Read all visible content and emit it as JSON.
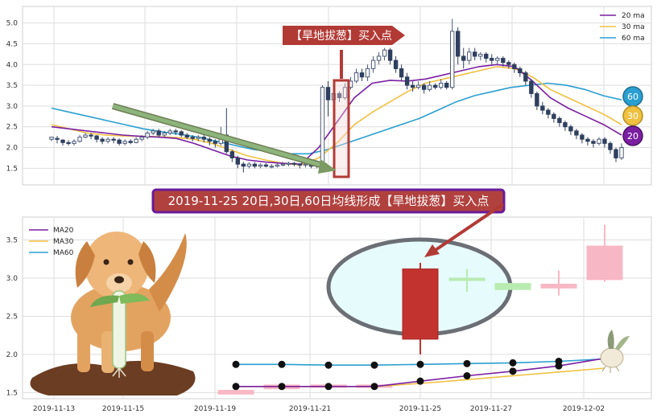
{
  "chart_data": [
    {
      "type": "candlestick",
      "panel": "top",
      "ylim": [
        1.1,
        5.4
      ],
      "yticks": [
        "1.5",
        "2.0",
        "2.5",
        "3.0",
        "3.5",
        "4.0",
        "4.5",
        "5.0"
      ],
      "grid": true,
      "legend_position": "top-right",
      "legend": [
        "20 ma",
        "30 ma",
        "60 ma"
      ],
      "series_colors": {
        "ma20": "#7b1fa2",
        "ma30": "#f0c040",
        "ma60": "#2a9fd0"
      },
      "candles": [
        [
          2.2,
          2.25,
          2.15,
          2.22
        ],
        [
          2.22,
          2.2,
          2.1,
          2.28
        ],
        [
          2.18,
          2.12,
          2.05,
          2.2
        ],
        [
          2.12,
          2.1,
          2.05,
          2.18
        ],
        [
          2.1,
          2.15,
          2.05,
          2.2
        ],
        [
          2.15,
          2.25,
          2.12,
          2.3
        ],
        [
          2.25,
          2.3,
          2.22,
          2.35
        ],
        [
          2.3,
          2.28,
          2.2,
          2.35
        ],
        [
          2.28,
          2.2,
          2.12,
          2.3
        ],
        [
          2.2,
          2.15,
          2.08,
          2.25
        ],
        [
          2.15,
          2.2,
          2.1,
          2.25
        ],
        [
          2.2,
          2.18,
          2.1,
          2.25
        ],
        [
          2.18,
          2.1,
          2.05,
          2.22
        ],
        [
          2.1,
          2.15,
          2.05,
          2.2
        ],
        [
          2.15,
          2.12,
          2.08,
          2.2
        ],
        [
          2.12,
          2.2,
          2.1,
          2.25
        ],
        [
          2.2,
          2.25,
          2.15,
          2.3
        ],
        [
          2.25,
          2.35,
          2.2,
          2.4
        ],
        [
          2.35,
          2.4,
          2.3,
          2.45
        ],
        [
          2.4,
          2.3,
          2.25,
          2.45
        ],
        [
          2.3,
          2.35,
          2.25,
          2.4
        ],
        [
          2.35,
          2.4,
          2.3,
          2.45
        ],
        [
          2.4,
          2.38,
          2.3,
          2.45
        ],
        [
          2.38,
          2.3,
          2.25,
          2.42
        ],
        [
          2.3,
          2.25,
          2.2,
          2.35
        ],
        [
          2.25,
          2.22,
          2.15,
          2.3
        ],
        [
          2.22,
          2.25,
          2.15,
          2.3
        ],
        [
          2.25,
          2.2,
          2.12,
          2.3
        ],
        [
          2.2,
          2.15,
          2.05,
          2.25
        ],
        [
          2.15,
          2.1,
          2.0,
          2.2
        ],
        [
          2.1,
          2.3,
          2.05,
          2.5
        ],
        [
          2.3,
          1.9,
          1.85,
          2.95
        ],
        [
          1.9,
          1.75,
          1.65,
          1.95
        ],
        [
          1.75,
          1.6,
          1.5,
          1.8
        ],
        [
          1.6,
          1.55,
          1.4,
          1.65
        ],
        [
          1.55,
          1.6,
          1.5,
          1.65
        ],
        [
          1.6,
          1.55,
          1.5,
          1.65
        ],
        [
          1.55,
          1.58,
          1.5,
          1.62
        ],
        [
          1.58,
          1.55,
          1.52,
          1.62
        ],
        [
          1.55,
          1.55,
          1.5,
          1.6
        ],
        [
          1.55,
          1.58,
          1.52,
          1.62
        ],
        [
          1.58,
          1.6,
          1.55,
          1.65
        ],
        [
          1.6,
          1.62,
          1.55,
          1.66
        ],
        [
          1.62,
          1.6,
          1.55,
          1.65
        ],
        [
          1.6,
          1.58,
          1.5,
          1.62
        ],
        [
          1.58,
          1.6,
          1.52,
          1.65
        ],
        [
          1.6,
          1.55,
          1.5,
          1.62
        ],
        [
          1.55,
          1.6,
          1.5,
          1.65
        ],
        [
          1.6,
          3.45,
          1.55,
          3.5
        ],
        [
          3.45,
          3.15,
          2.75,
          3.6
        ],
        [
          3.15,
          3.3,
          3.1,
          3.4
        ],
        [
          3.3,
          3.2,
          3.1,
          3.35
        ],
        [
          3.2,
          3.45,
          3.15,
          3.55
        ],
        [
          3.45,
          3.6,
          3.4,
          3.7
        ],
        [
          3.6,
          3.8,
          3.55,
          3.9
        ],
        [
          3.8,
          3.7,
          3.6,
          3.9
        ],
        [
          3.7,
          3.9,
          3.6,
          4.0
        ],
        [
          3.9,
          4.1,
          3.8,
          4.2
        ],
        [
          4.1,
          4.2,
          4.0,
          4.3
        ],
        [
          4.2,
          4.35,
          4.1,
          4.4
        ],
        [
          4.35,
          4.1,
          4.0,
          4.4
        ],
        [
          4.1,
          3.9,
          3.8,
          4.2
        ],
        [
          3.9,
          3.7,
          3.6,
          4.0
        ],
        [
          3.7,
          3.5,
          3.4,
          3.8
        ],
        [
          3.5,
          3.45,
          3.35,
          3.6
        ],
        [
          3.45,
          3.5,
          3.4,
          3.6
        ],
        [
          3.5,
          3.4,
          3.3,
          3.55
        ],
        [
          3.4,
          3.5,
          3.35,
          3.6
        ],
        [
          3.5,
          3.45,
          3.4,
          3.55
        ],
        [
          3.45,
          3.55,
          3.4,
          3.65
        ],
        [
          3.55,
          3.45,
          3.4,
          3.6
        ],
        [
          3.45,
          4.8,
          3.4,
          5.1
        ],
        [
          4.8,
          4.2,
          4.0,
          4.9
        ],
        [
          4.2,
          4.1,
          3.9,
          4.4
        ],
        [
          4.1,
          4.3,
          4.0,
          4.4
        ],
        [
          4.3,
          4.2,
          4.1,
          4.4
        ],
        [
          4.2,
          4.25,
          4.1,
          4.3
        ],
        [
          4.25,
          4.15,
          4.05,
          4.3
        ],
        [
          4.15,
          4.1,
          4.0,
          4.25
        ],
        [
          4.1,
          4.15,
          4.0,
          4.2
        ],
        [
          4.15,
          4.05,
          3.95,
          4.2
        ],
        [
          4.05,
          4.0,
          3.9,
          4.1
        ],
        [
          4.0,
          3.9,
          3.8,
          4.05
        ],
        [
          3.9,
          3.8,
          3.7,
          3.95
        ],
        [
          3.8,
          3.6,
          3.5,
          3.85
        ],
        [
          3.6,
          3.3,
          3.2,
          3.65
        ],
        [
          3.3,
          3.0,
          2.9,
          3.35
        ],
        [
          3.0,
          2.9,
          2.8,
          3.1
        ],
        [
          2.9,
          2.8,
          2.7,
          2.95
        ],
        [
          2.8,
          2.7,
          2.6,
          2.85
        ],
        [
          2.7,
          2.6,
          2.5,
          2.75
        ],
        [
          2.6,
          2.5,
          2.4,
          2.65
        ],
        [
          2.5,
          2.4,
          2.3,
          2.55
        ],
        [
          2.4,
          2.3,
          2.2,
          2.45
        ],
        [
          2.3,
          2.2,
          2.1,
          2.35
        ],
        [
          2.2,
          2.15,
          2.05,
          2.25
        ],
        [
          2.15,
          2.1,
          2.0,
          2.2
        ],
        [
          2.1,
          2.2,
          2.05,
          2.25
        ],
        [
          2.2,
          2.1,
          2.0,
          2.25
        ],
        [
          2.1,
          1.95,
          1.85,
          2.15
        ],
        [
          1.95,
          1.75,
          1.65,
          2.0
        ],
        [
          1.75,
          2.0,
          1.7,
          2.1
        ]
      ],
      "ma20": [
        2.5,
        2.45,
        2.4,
        2.35,
        2.3,
        2.27,
        2.25,
        2.22,
        2.1,
        1.95,
        1.8,
        1.7,
        1.65,
        1.62,
        1.6,
        2.0,
        2.6,
        3.2,
        3.55,
        3.62,
        3.6,
        3.65,
        3.75,
        3.85,
        3.95,
        4.0,
        3.95,
        3.6,
        3.2,
        2.95,
        2.75,
        2.55,
        2.3
      ],
      "ma30": [
        2.55,
        2.45,
        2.35,
        2.3,
        2.28,
        2.27,
        2.26,
        2.24,
        2.2,
        2.1,
        1.95,
        1.8,
        1.7,
        1.62,
        1.58,
        1.75,
        2.1,
        2.55,
        2.85,
        3.1,
        3.35,
        3.55,
        3.65,
        3.75,
        3.85,
        3.95,
        3.9,
        3.7,
        3.4,
        3.2,
        3.0,
        2.8,
        2.55
      ],
      "ma60": [
        2.95,
        2.85,
        2.75,
        2.65,
        2.55,
        2.45,
        2.38,
        2.32,
        2.25,
        2.15,
        2.05,
        1.95,
        1.9,
        1.85,
        1.85,
        1.95,
        2.1,
        2.25,
        2.4,
        2.55,
        2.7,
        2.9,
        3.1,
        3.25,
        3.35,
        3.45,
        3.5,
        3.55,
        3.5,
        3.4,
        3.25,
        3.15
      ]
    },
    {
      "type": "candlestick",
      "panel": "bottom",
      "ylim": [
        1.42,
        3.8
      ],
      "yticks": [
        "1.5",
        "2.0",
        "2.5",
        "3.0",
        "3.5"
      ],
      "x_labels": [
        "2019-11-13",
        "2019-11-15",
        "2019-11-19",
        "2019-11-21",
        "2019-11-25",
        "2019-11-27",
        "2019-12-02"
      ],
      "grid": true,
      "legend_position": "top-left",
      "legend": [
        "MA20",
        "MA30",
        "MA60"
      ],
      "candles": [
        {
          "x": 0,
          "open": 1.48,
          "close": 1.53,
          "high": 1.53,
          "low": 1.48,
          "color": "pink"
        },
        {
          "x": 1,
          "open": 1.55,
          "close": 1.6,
          "high": 1.6,
          "low": 1.55,
          "color": "pink"
        },
        {
          "x": 2,
          "open": 1.59,
          "close": 1.6,
          "high": 1.6,
          "low": 1.59,
          "color": "pink"
        },
        {
          "x": 3,
          "open": 1.58,
          "close": 1.6,
          "high": 1.6,
          "low": 1.58,
          "color": "pink"
        },
        {
          "x": 4,
          "open": 3.12,
          "close": 2.2,
          "high": 3.2,
          "low": 2.0,
          "color": "red"
        },
        {
          "x": 5,
          "open": 3.0,
          "close": 2.97,
          "high": 3.12,
          "low": 2.82,
          "color": "lightgreen"
        },
        {
          "x": 6,
          "open": 2.93,
          "close": 2.85,
          "high": 2.93,
          "low": 2.85,
          "color": "lightgreen"
        },
        {
          "x": 7,
          "open": 2.87,
          "close": 2.92,
          "high": 3.1,
          "low": 2.77,
          "color": "pink"
        },
        {
          "x": 8,
          "open": 2.98,
          "close": 3.42,
          "high": 3.7,
          "low": 2.95,
          "color": "pink"
        }
      ],
      "ma20": [
        1.58,
        1.58,
        1.58,
        1.58,
        1.65,
        1.72,
        1.78,
        1.85,
        1.95
      ],
      "ma30": [
        1.58,
        1.58,
        1.58,
        1.58,
        1.62,
        1.67,
        1.72,
        1.77,
        1.82
      ],
      "ma60": [
        1.87,
        1.87,
        1.86,
        1.86,
        1.87,
        1.88,
        1.89,
        1.91,
        1.94
      ]
    }
  ],
  "annotations": {
    "arrow_label": "【旱地拔葱】买入点",
    "banner": "2019-11-25 20日,30日,60日均线形成【旱地拔葱】买入点",
    "badges": [
      "60",
      "30",
      "20"
    ]
  },
  "colors": {
    "ma20": "#7b1fa2",
    "ma30": "#f0c040",
    "ma60": "#2a9fd0",
    "banner_bg": "#b0413e",
    "banner_border": "#6a1b9a",
    "arrow": "#b23a35"
  }
}
